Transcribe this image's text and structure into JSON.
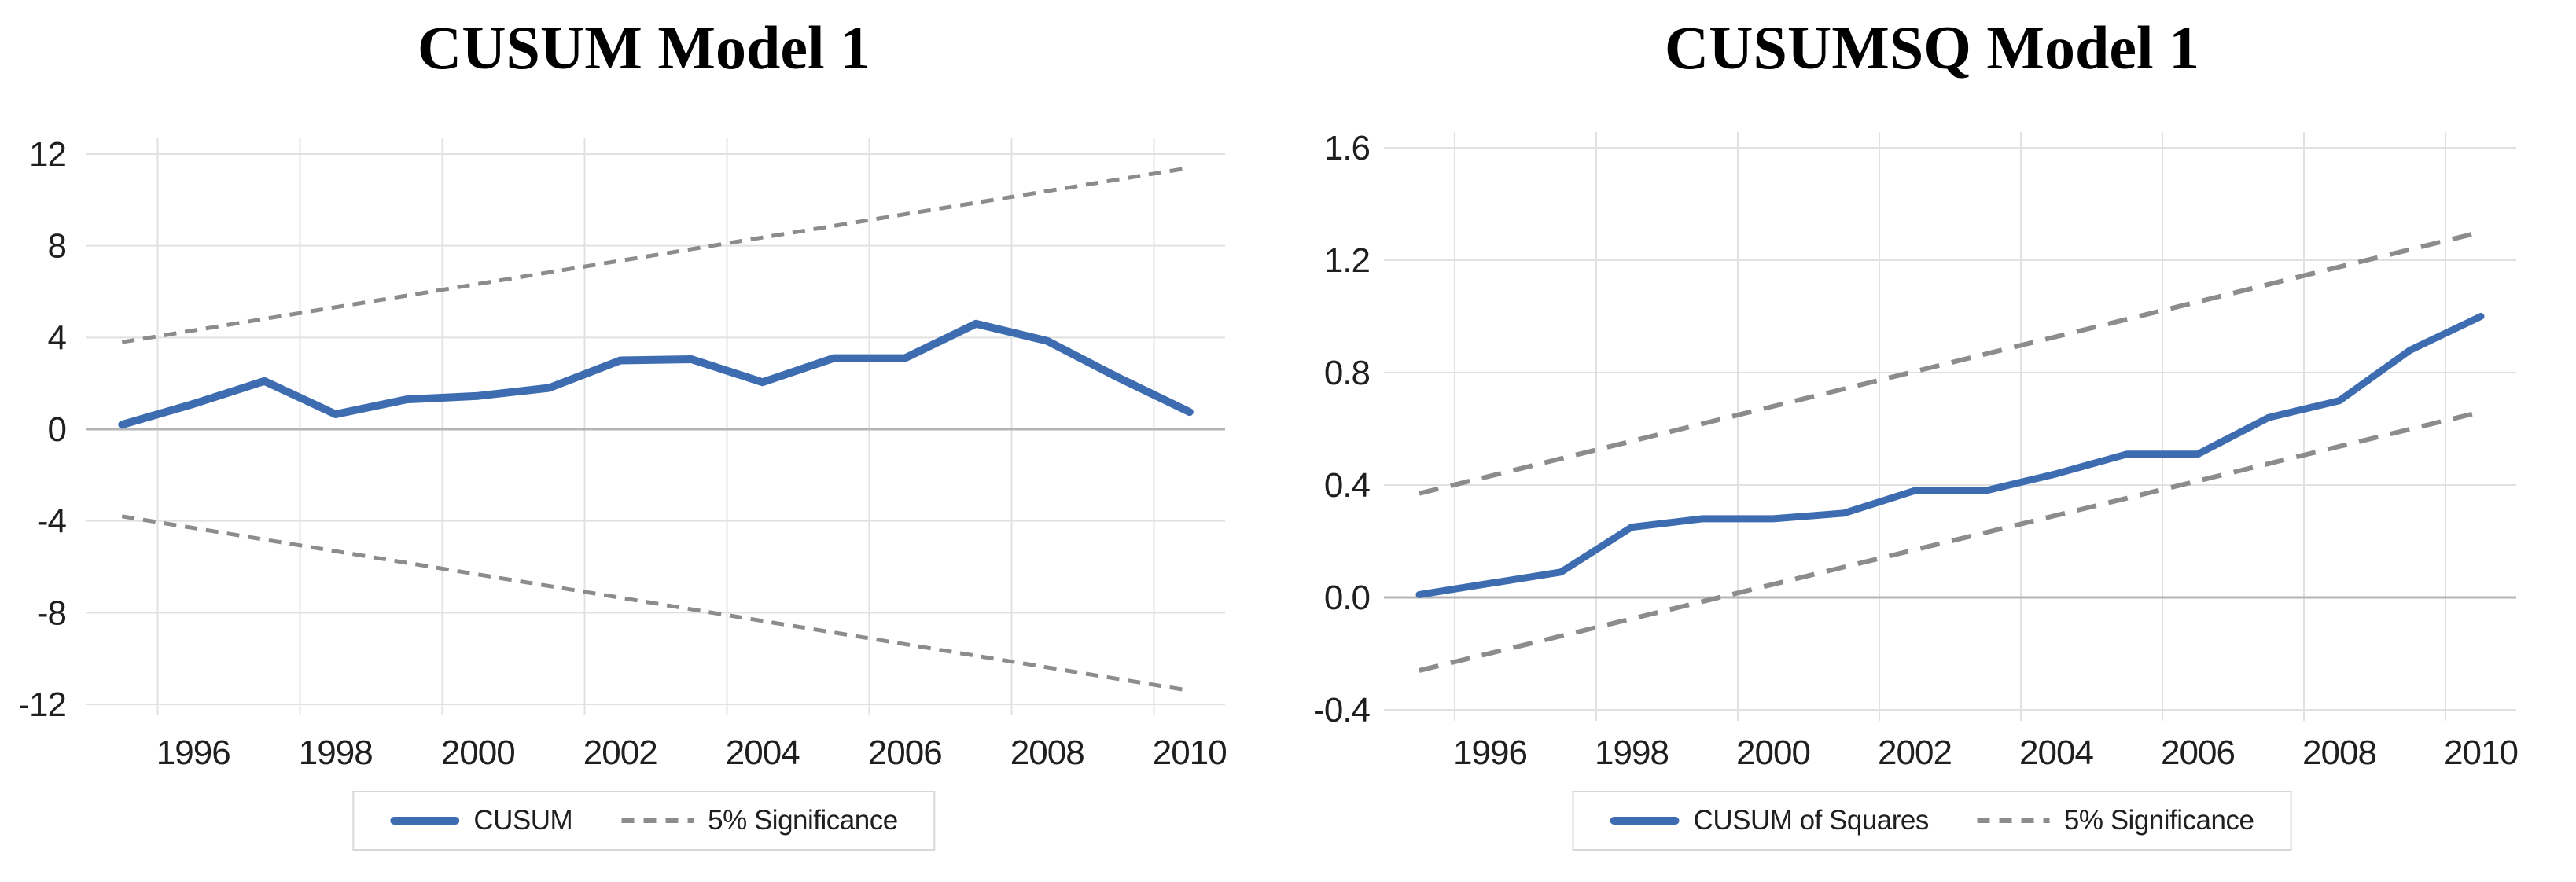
{
  "page_background": "#ffffff",
  "colors": {
    "series_blue": "#3e6cb0",
    "significance_gray": "#8c8c8c",
    "gridline": "#e1e1e1",
    "zero_line": "#b5b5b5",
    "tick_text": "#1f1f1f",
    "title_text": "#000000",
    "legend_border": "#d8d8d8",
    "legend_text": "#1f1f1f"
  },
  "chart_data": [
    {
      "type": "line",
      "title": "CUSUM Model 1",
      "x": [
        1995,
        1996,
        1997,
        1998,
        1999,
        2000,
        2001,
        2002,
        2003,
        2004,
        2005,
        2006,
        2007,
        2008,
        2009,
        2010
      ],
      "x_ticks": [
        {
          "year": 1996,
          "label": "1996"
        },
        {
          "year": 1998,
          "label": "1998"
        },
        {
          "year": 2000,
          "label": "2000"
        },
        {
          "year": 2002,
          "label": "2002"
        },
        {
          "year": 2004,
          "label": "2004"
        },
        {
          "year": 2006,
          "label": "2006"
        },
        {
          "year": 2008,
          "label": "2008"
        },
        {
          "year": 2010,
          "label": "2010"
        }
      ],
      "y_ticks": [
        {
          "value": 12,
          "label": "12"
        },
        {
          "value": 8,
          "label": "8"
        },
        {
          "value": 4,
          "label": "4"
        },
        {
          "value": 0,
          "label": "0"
        },
        {
          "value": -4,
          "label": "-4"
        },
        {
          "value": -8,
          "label": "-8"
        },
        {
          "value": -12,
          "label": "-12"
        }
      ],
      "ylim": [
        -12,
        12
      ],
      "grid": true,
      "legend_position": "bottom",
      "series": [
        {
          "name": "CUSUM",
          "values": [
            0.2,
            1.1,
            2.1,
            0.65,
            1.3,
            1.45,
            1.8,
            3.0,
            3.05,
            2.05,
            3.1,
            3.1,
            4.6,
            3.85,
            2.25,
            0.75
          ]
        }
      ],
      "bands": {
        "name": "5% Significance",
        "upper": {
          "start": 3.8,
          "end": 11.4
        },
        "lower": {
          "start": -3.8,
          "end": -11.4
        }
      },
      "legend": [
        {
          "label": "CUSUM",
          "swatch": "solid"
        },
        {
          "label": "5% Significance",
          "swatch": "dashed"
        }
      ]
    },
    {
      "type": "line",
      "title": "CUSUMSQ Model 1",
      "x": [
        1995,
        1996,
        1997,
        1998,
        1999,
        2000,
        2001,
        2002,
        2003,
        2004,
        2005,
        2006,
        2007,
        2008,
        2009,
        2010
      ],
      "x_ticks": [
        {
          "year": 1996,
          "label": "1996"
        },
        {
          "year": 1998,
          "label": "1998"
        },
        {
          "year": 2000,
          "label": "2000"
        },
        {
          "year": 2002,
          "label": "2002"
        },
        {
          "year": 2004,
          "label": "2004"
        },
        {
          "year": 2006,
          "label": "2006"
        },
        {
          "year": 2008,
          "label": "2008"
        },
        {
          "year": 2010,
          "label": "2010"
        }
      ],
      "y_ticks": [
        {
          "value": 1.6,
          "label": "1.6"
        },
        {
          "value": 1.2,
          "label": "1.2"
        },
        {
          "value": 0.8,
          "label": "0.8"
        },
        {
          "value": 0.4,
          "label": "0.4"
        },
        {
          "value": 0.0,
          "label": "0.0"
        },
        {
          "value": -0.4,
          "label": "-0.4"
        }
      ],
      "ylim": [
        -0.4,
        1.6
      ],
      "grid": true,
      "legend_position": "bottom",
      "series": [
        {
          "name": "CUSUM of Squares",
          "values": [
            0.01,
            0.05,
            0.09,
            0.25,
            0.28,
            0.28,
            0.3,
            0.38,
            0.38,
            0.44,
            0.51,
            0.51,
            0.64,
            0.7,
            0.88,
            1.0
          ]
        }
      ],
      "bands": {
        "name": "5% Significance",
        "upper": {
          "start": 0.37,
          "end": 1.3
        },
        "lower": {
          "start": -0.26,
          "end": 0.66
        }
      },
      "legend": [
        {
          "label": "CUSUM of Squares",
          "swatch": "solid"
        },
        {
          "label": "5% Significance",
          "swatch": "dashed"
        }
      ]
    }
  ]
}
